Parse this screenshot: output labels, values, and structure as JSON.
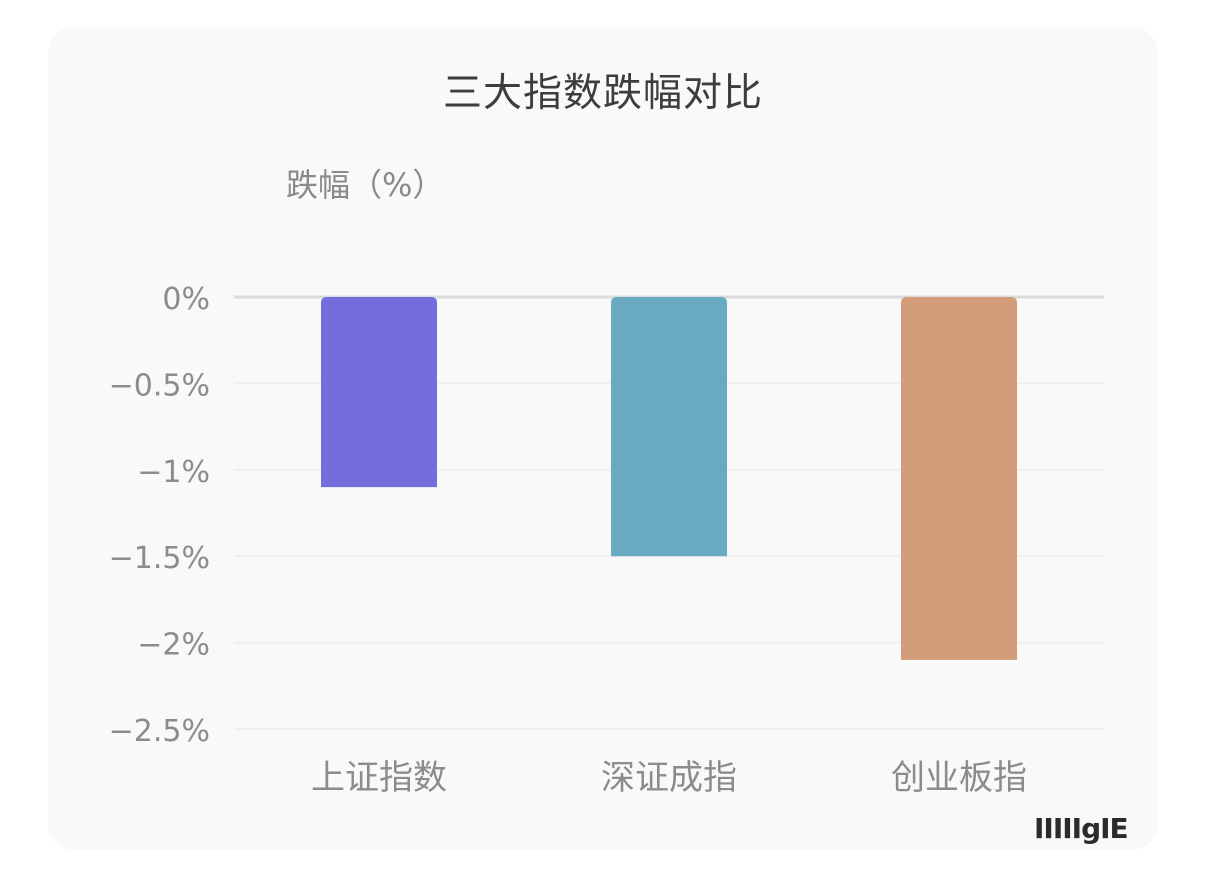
{
  "chart_data": {
    "type": "bar",
    "title": "三大指数跌幅对比",
    "ylabel": "跌幅（%）",
    "xlabel": "",
    "categories": [
      "上证指数",
      "深证成指",
      "创业板指"
    ],
    "values": [
      -1.1,
      -1.5,
      -2.1
    ],
    "colors": [
      "#746ddc",
      "#6aaac0",
      "#d49d7a"
    ],
    "ylim": [
      -2.5,
      0
    ],
    "yticks": [
      0,
      -0.5,
      -1,
      -1.5,
      -2,
      -2.5
    ],
    "ytick_labels": [
      "0%",
      "−0.5%",
      "−1%",
      "−1.5%",
      "−2%",
      "−2.5%"
    ],
    "grid": true
  },
  "watermark": {
    "text": "IIIIIgIE"
  }
}
